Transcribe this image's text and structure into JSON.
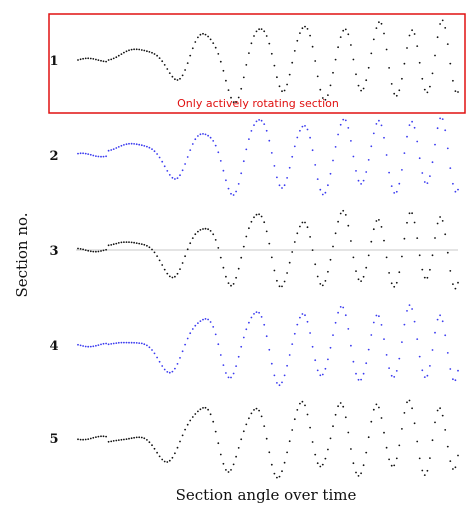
{
  "chart_data": {
    "type": "scatter",
    "xlabel": "Section angle over time",
    "ylabel": "Section no.",
    "grid": false,
    "legend": "none",
    "colors": {
      "black": "#111111",
      "blue": "#3a3af0",
      "highlight": "#e01010",
      "baseline": "#c8c8c8"
    },
    "highlight": {
      "section": "1",
      "annotation": "Only actively rotating section"
    },
    "series": [
      {
        "label": "1",
        "color": "black",
        "baseline_line": false
      },
      {
        "label": "2",
        "color": "blue",
        "baseline_line": false
      },
      {
        "label": "3",
        "color": "black",
        "baseline_line": true
      },
      {
        "label": "4",
        "color": "blue",
        "baseline_line": false
      },
      {
        "label": "5",
        "color": "black",
        "baseline_line": false
      }
    ]
  }
}
